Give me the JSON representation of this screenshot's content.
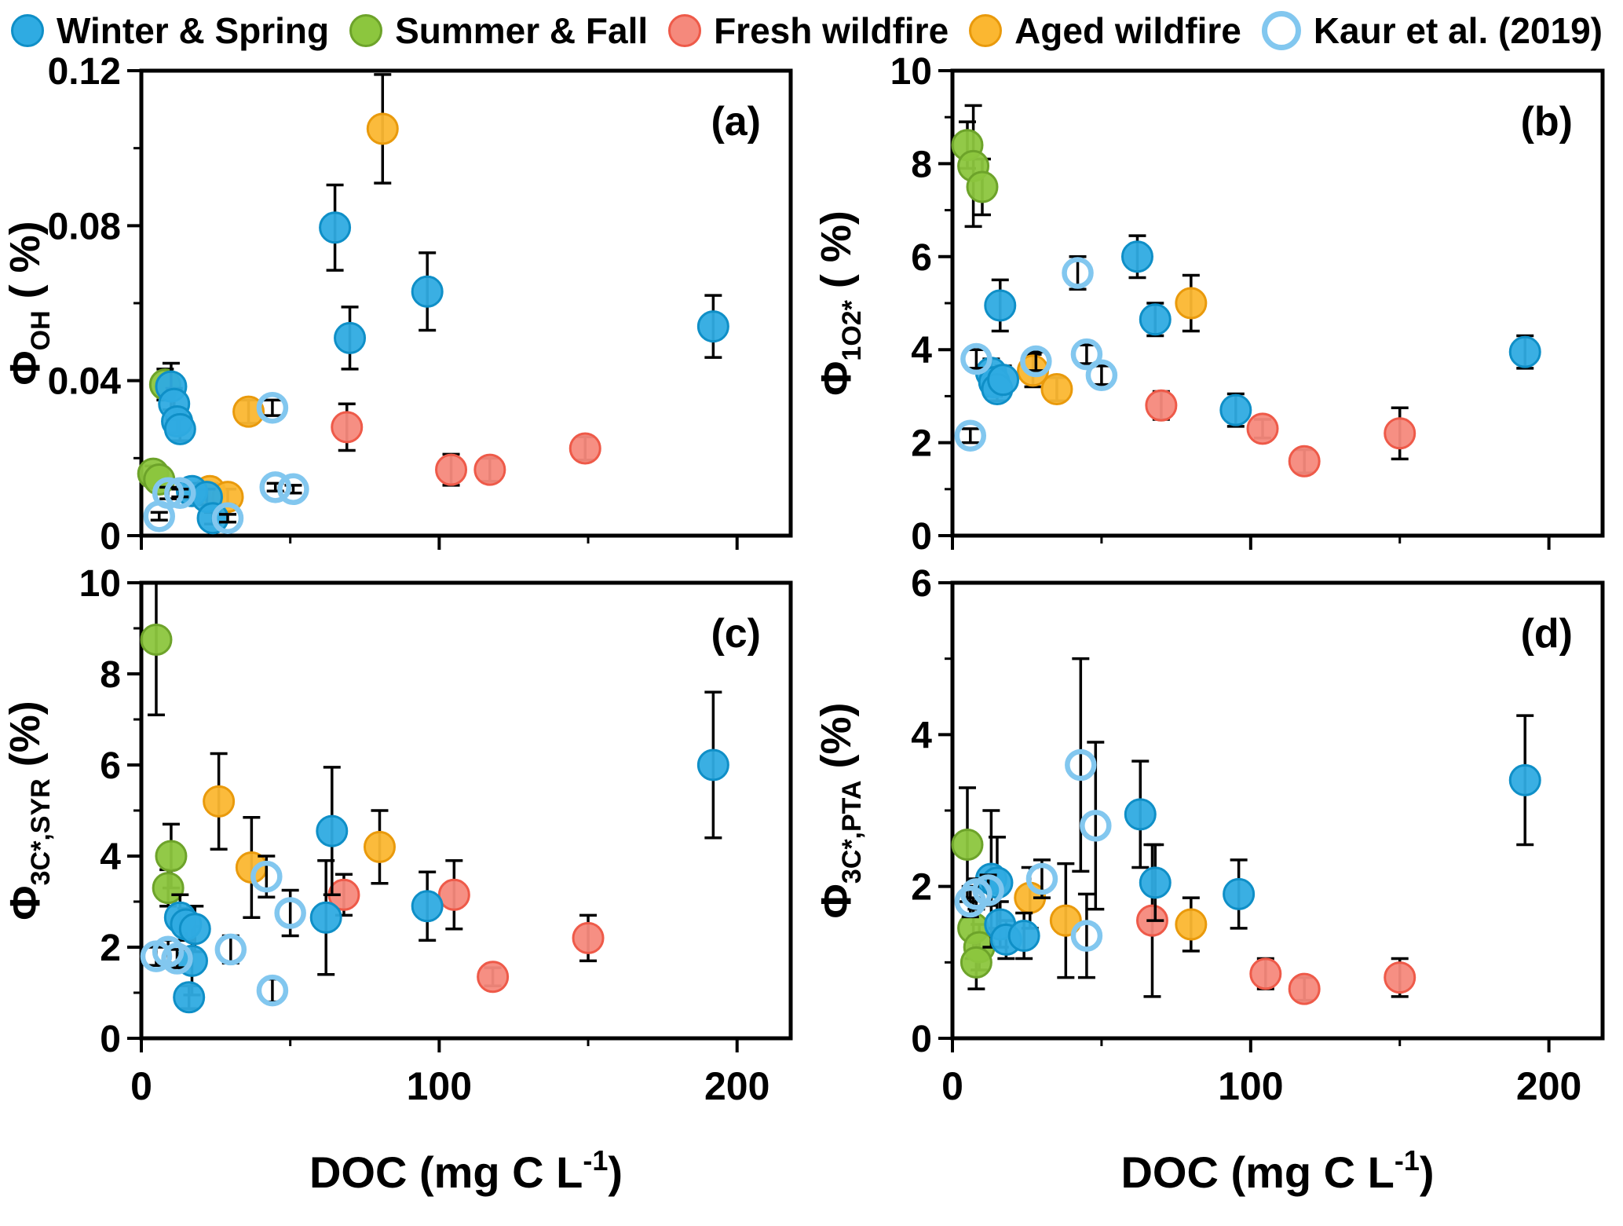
{
  "legend": {
    "items": [
      {
        "label": "Winter & Spring",
        "fill": "#2fabe2",
        "stroke": "#0f8fc7",
        "open": false
      },
      {
        "label": "Summer & Fall",
        "fill": "#8cc63e",
        "stroke": "#6da32a",
        "open": false
      },
      {
        "label": "Fresh wildfire",
        "fill": "#f5897c",
        "stroke": "#ee5a49",
        "open": false
      },
      {
        "label": "Aged wildfire",
        "fill": "#fbb731",
        "stroke": "#e99a0c",
        "open": false
      },
      {
        "label": "Kaur et al. (2019)",
        "fill": "none",
        "stroke": "#82c7ef",
        "open": true
      }
    ]
  },
  "axis": {
    "x_label": {
      "pre": "DOC (mg C L",
      "sup": "-1",
      "post": ")"
    }
  },
  "chart_data": [
    {
      "type": "scatter",
      "id": "a",
      "panel_label": "(a)",
      "ylabel": {
        "phi": "Φ",
        "sub": "OH",
        "rest": " ( %)"
      },
      "xlim": [
        0,
        218
      ],
      "ylim": [
        0,
        0.12
      ],
      "xticks": [
        0,
        100,
        200
      ],
      "xtick_labels": [
        "0",
        "100",
        "200"
      ],
      "xminor": [
        50,
        150
      ],
      "yticks": [
        0,
        0.04,
        0.08,
        0.12
      ],
      "ytick_labels": [
        "0",
        "0.04",
        "0.08",
        "0.12"
      ],
      "yminor": [
        0.02,
        0.06,
        0.1
      ],
      "show_x_labels": false,
      "series": [
        {
          "name": "Summer & Fall",
          "points": [
            [
              8,
              0.039,
              0.004
            ],
            [
              4,
              0.016,
              0.002
            ],
            [
              6,
              0.0145,
              0.002
            ]
          ]
        },
        {
          "name": "Aged wildfire",
          "points": [
            [
              81,
              0.105,
              0.014
            ],
            [
              36,
              0.032,
              0.003
            ],
            [
              23,
              0.0115,
              0.002
            ],
            [
              29,
              0.01,
              0.002
            ]
          ]
        },
        {
          "name": "Fresh wildfire",
          "points": [
            [
              69,
              0.028,
              0.006
            ],
            [
              104,
              0.017,
              0.004
            ],
            [
              117,
              0.017,
              0.003
            ],
            [
              149,
              0.0225,
              0.003
            ]
          ]
        },
        {
          "name": "Winter & Spring",
          "points": [
            [
              10,
              0.0385,
              0.006
            ],
            [
              11,
              0.034,
              0.004
            ],
            [
              12,
              0.0295,
              0.003
            ],
            [
              13,
              0.0275,
              0.003
            ],
            [
              17,
              0.0115,
              0.002
            ],
            [
              22,
              0.01,
              0.002
            ],
            [
              24,
              0.0045,
              0.0015
            ],
            [
              65,
              0.0795,
              0.011
            ],
            [
              70,
              0.051,
              0.008
            ],
            [
              96,
              0.063,
              0.01
            ],
            [
              192,
              0.054,
              0.008
            ]
          ]
        },
        {
          "name": "Kaur et al. (2019)",
          "points": [
            [
              6,
              0.005,
              0.001
            ],
            [
              9,
              0.011,
              0.0015
            ],
            [
              13,
              0.011,
              0.001
            ],
            [
              29,
              0.0045,
              0.001
            ],
            [
              44,
              0.033,
              0.002
            ],
            [
              45,
              0.0125,
              0.001
            ],
            [
              51,
              0.012,
              0.001
            ]
          ]
        }
      ]
    },
    {
      "type": "scatter",
      "id": "b",
      "panel_label": "(b)",
      "ylabel": {
        "phi": "Φ",
        "sub": "1O2*",
        "rest": " ( %)"
      },
      "xlim": [
        0,
        218
      ],
      "ylim": [
        0,
        10
      ],
      "xticks": [
        0,
        100,
        200
      ],
      "xtick_labels": [
        "0",
        "100",
        "200"
      ],
      "xminor": [
        50,
        150
      ],
      "yticks": [
        0,
        2,
        4,
        6,
        8,
        10
      ],
      "ytick_labels": [
        "0",
        "2",
        "4",
        "6",
        "8",
        "10"
      ],
      "yminor": [
        1,
        3,
        5,
        7,
        9
      ],
      "show_x_labels": false,
      "series": [
        {
          "name": "Summer & Fall",
          "points": [
            [
              5,
              8.4,
              0.5
            ],
            [
              7,
              7.95,
              1.3
            ],
            [
              10,
              7.5,
              0.6
            ]
          ]
        },
        {
          "name": "Aged wildfire",
          "points": [
            [
              27,
              3.55,
              0.35
            ],
            [
              35,
              3.15,
              0.25
            ],
            [
              80,
              5.0,
              0.6
            ]
          ]
        },
        {
          "name": "Fresh wildfire",
          "points": [
            [
              70,
              2.8,
              0.3
            ],
            [
              104,
              2.3,
              0.2
            ],
            [
              118,
              1.6,
              0.25
            ],
            [
              150,
              2.2,
              0.55
            ]
          ]
        },
        {
          "name": "Winter & Spring",
          "points": [
            [
              16,
              4.95,
              0.55
            ],
            [
              13,
              3.5,
              0.3
            ],
            [
              14,
              3.3,
              0.3
            ],
            [
              15,
              3.15,
              0.25
            ],
            [
              17,
              3.35,
              0.3
            ],
            [
              62,
              6.0,
              0.45
            ],
            [
              68,
              4.65,
              0.35
            ],
            [
              95,
              2.7,
              0.35
            ],
            [
              192,
              3.95,
              0.35
            ]
          ]
        },
        {
          "name": "Kaur et al. (2019)",
          "points": [
            [
              8,
              3.8,
              0.2
            ],
            [
              6,
              2.15,
              0.15
            ],
            [
              28,
              3.75,
              0.2
            ],
            [
              42,
              5.65,
              0.35
            ],
            [
              45,
              3.9,
              0.2
            ],
            [
              50,
              3.45,
              0.2
            ]
          ]
        }
      ]
    },
    {
      "type": "scatter",
      "id": "c",
      "panel_label": "(c)",
      "ylabel": {
        "phi": "Φ",
        "sub": "3C*,SYR",
        "rest": " (%)"
      },
      "xlim": [
        0,
        218
      ],
      "ylim": [
        0,
        10
      ],
      "xticks": [
        0,
        100,
        200
      ],
      "xtick_labels": [
        "0",
        "100",
        "200"
      ],
      "xminor": [
        50,
        150
      ],
      "yticks": [
        0,
        2,
        4,
        6,
        8,
        10
      ],
      "ytick_labels": [
        "0",
        "2",
        "4",
        "6",
        "8",
        "10"
      ],
      "yminor": [
        1,
        3,
        5,
        7,
        9
      ],
      "show_x_labels": true,
      "series": [
        {
          "name": "Summer & Fall",
          "points": [
            [
              5,
              8.75,
              1.65
            ],
            [
              10,
              4.0,
              0.7
            ],
            [
              9,
              3.3,
              0.4
            ]
          ]
        },
        {
          "name": "Aged wildfire",
          "points": [
            [
              26,
              5.2,
              1.05
            ],
            [
              37,
              3.75,
              1.1
            ],
            [
              80,
              4.2,
              0.8
            ]
          ]
        },
        {
          "name": "Fresh wildfire",
          "points": [
            [
              68,
              3.15,
              0.45
            ],
            [
              105,
              3.15,
              0.75
            ],
            [
              118,
              1.35,
              0.2
            ],
            [
              150,
              2.2,
              0.5
            ]
          ]
        },
        {
          "name": "Winter & Spring",
          "points": [
            [
              13,
              2.65,
              0.5
            ],
            [
              15,
              2.5,
              0.35
            ],
            [
              18,
              2.4,
              0.5
            ],
            [
              17,
              1.7,
              0.75
            ],
            [
              16,
              0.9,
              0.25
            ],
            [
              64,
              4.55,
              1.4
            ],
            [
              62,
              2.65,
              1.25
            ],
            [
              96,
              2.9,
              0.75
            ],
            [
              192,
              6.0,
              1.6
            ]
          ]
        },
        {
          "name": "Kaur et al. (2019)",
          "points": [
            [
              5,
              1.8,
              0.2
            ],
            [
              9,
              1.9,
              0.25
            ],
            [
              12,
              1.75,
              0.2
            ],
            [
              30,
              1.95,
              0.3
            ],
            [
              42,
              3.55,
              0.45
            ],
            [
              44,
              1.05,
              0.25
            ],
            [
              50,
              2.75,
              0.5
            ]
          ]
        }
      ]
    },
    {
      "type": "scatter",
      "id": "d",
      "panel_label": "(d)",
      "ylabel": {
        "phi": "Φ",
        "sub": "3C*,PTA",
        "rest": " (%)"
      },
      "xlim": [
        0,
        218
      ],
      "ylim": [
        0,
        6
      ],
      "xticks": [
        0,
        100,
        200
      ],
      "xtick_labels": [
        "0",
        "100",
        "200"
      ],
      "xminor": [
        50,
        150
      ],
      "yticks": [
        0,
        2,
        4,
        6
      ],
      "ytick_labels": [
        "0",
        "2",
        "4",
        "6"
      ],
      "yminor": [
        1,
        3,
        5
      ],
      "show_x_labels": true,
      "series": [
        {
          "name": "Summer & Fall",
          "points": [
            [
              5,
              2.55,
              0.75
            ],
            [
              7,
              1.45,
              0.4
            ],
            [
              9,
              1.2,
              0.3
            ],
            [
              8,
              1.0,
              0.35
            ]
          ]
        },
        {
          "name": "Aged wildfire",
          "points": [
            [
              26,
              1.85,
              0.4
            ],
            [
              38,
              1.55,
              0.75
            ],
            [
              80,
              1.5,
              0.35
            ]
          ]
        },
        {
          "name": "Fresh wildfire",
          "points": [
            [
              67,
              1.55,
              1.0
            ],
            [
              105,
              0.85,
              0.2
            ],
            [
              118,
              0.65,
              0.15
            ],
            [
              150,
              0.8,
              0.25
            ]
          ]
        },
        {
          "name": "Winter & Spring",
          "points": [
            [
              13,
              2.1,
              0.9
            ],
            [
              15,
              2.05,
              0.6
            ],
            [
              16,
              1.5,
              0.3
            ],
            [
              18,
              1.3,
              0.25
            ],
            [
              24,
              1.35,
              0.3
            ],
            [
              63,
              2.95,
              0.7
            ],
            [
              68,
              2.05,
              0.5
            ],
            [
              96,
              1.9,
              0.45
            ],
            [
              192,
              3.4,
              0.85
            ]
          ]
        },
        {
          "name": "Kaur et al. (2019)",
          "points": [
            [
              6,
              1.8,
              0.2
            ],
            [
              8,
              1.9,
              0.2
            ],
            [
              12,
              1.95,
              0.2
            ],
            [
              30,
              2.1,
              0.25
            ],
            [
              43,
              3.6,
              1.4
            ],
            [
              48,
              2.8,
              1.1
            ],
            [
              45,
              1.35,
              0.55
            ]
          ]
        }
      ]
    }
  ]
}
